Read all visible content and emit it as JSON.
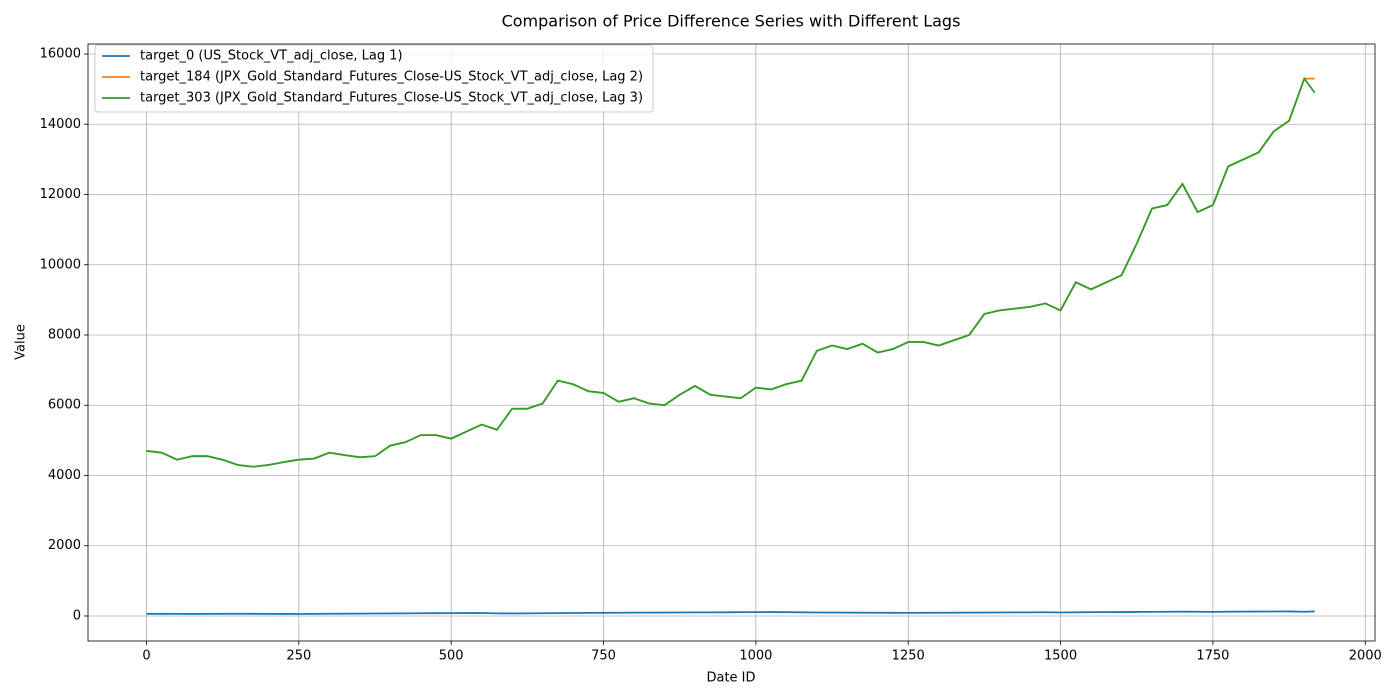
{
  "chart_data": {
    "type": "line",
    "title": "Comparison of Price Difference Series with Different Lags",
    "x_label": "Date ID",
    "y_label": "Value",
    "x": [
      0,
      25,
      50,
      75,
      100,
      125,
      150,
      175,
      200,
      225,
      250,
      275,
      300,
      325,
      350,
      375,
      400,
      425,
      450,
      475,
      500,
      525,
      550,
      575,
      600,
      625,
      650,
      675,
      700,
      725,
      750,
      775,
      800,
      825,
      850,
      875,
      900,
      925,
      950,
      975,
      1000,
      1025,
      1050,
      1075,
      1100,
      1125,
      1150,
      1175,
      1200,
      1225,
      1250,
      1275,
      1300,
      1325,
      1350,
      1375,
      1400,
      1425,
      1450,
      1475,
      1500,
      1525,
      1550,
      1575,
      1600,
      1625,
      1650,
      1675,
      1700,
      1725,
      1750,
      1775,
      1800,
      1825,
      1850,
      1875,
      1900,
      1917
    ],
    "series": [
      {
        "name": "target_0 (US_Stock_VT_adj_close, Lag 1)",
        "color": "#1f77b4",
        "values": [
          60,
          62,
          60,
          58,
          60,
          62,
          63,
          62,
          60,
          58,
          57,
          60,
          63,
          65,
          68,
          70,
          72,
          75,
          78,
          80,
          82,
          84,
          85,
          75,
          72,
          74,
          78,
          82,
          85,
          88,
          90,
          92,
          95,
          96,
          98,
          100,
          102,
          104,
          105,
          108,
          110,
          112,
          108,
          105,
          100,
          98,
          96,
          94,
          92,
          90,
          88,
          90,
          92,
          94,
          96,
          98,
          100,
          102,
          104,
          106,
          100,
          105,
          108,
          110,
          112,
          115,
          118,
          120,
          122,
          120,
          118,
          122,
          125,
          126,
          128,
          130,
          120,
          130
        ]
      },
      {
        "name": "target_184 (JPX_Gold_Standard_Futures_Close-US_Stock_VT_adj_close, Lag 2)",
        "color": "#ff7f0e",
        "values": [
          4700,
          4650,
          4450,
          4550,
          4550,
          4450,
          4300,
          4250,
          4300,
          4380,
          4450,
          4480,
          4650,
          4580,
          4520,
          4550,
          4850,
          4950,
          5150,
          5150,
          5050,
          5250,
          5450,
          5300,
          5900,
          5900,
          6050,
          6700,
          6600,
          6400,
          6350,
          6100,
          6200,
          6050,
          6000,
          6300,
          6550,
          6300,
          6250,
          6200,
          6500,
          6450,
          6600,
          6700,
          7550,
          7700,
          7600,
          7750,
          7500,
          7600,
          7800,
          7800,
          7700,
          7850,
          8000,
          8600,
          8700,
          8750,
          8800,
          8900,
          8700,
          9500,
          9300,
          9500,
          9700,
          10600,
          11600,
          11700,
          12300,
          11500,
          11700,
          12800,
          13000,
          13200,
          13800,
          14100,
          15300,
          15300
        ]
      },
      {
        "name": "target_303 (JPX_Gold_Standard_Futures_Close-US_Stock_VT_adj_close, Lag 3)",
        "color": "#2ca02c",
        "values": [
          4700,
          4650,
          4450,
          4550,
          4550,
          4450,
          4300,
          4250,
          4300,
          4380,
          4450,
          4480,
          4650,
          4580,
          4520,
          4550,
          4850,
          4950,
          5150,
          5150,
          5050,
          5250,
          5450,
          5300,
          5900,
          5900,
          6050,
          6700,
          6600,
          6400,
          6350,
          6100,
          6200,
          6050,
          6000,
          6300,
          6550,
          6300,
          6250,
          6200,
          6500,
          6450,
          6600,
          6700,
          7550,
          7700,
          7600,
          7750,
          7500,
          7600,
          7800,
          7800,
          7700,
          7850,
          8000,
          8600,
          8700,
          8750,
          8800,
          8900,
          8700,
          9500,
          9300,
          9500,
          9700,
          10600,
          11600,
          11700,
          12300,
          11500,
          11700,
          12800,
          13000,
          13200,
          13800,
          14100,
          15300,
          14900
        ]
      }
    ],
    "xlim": [
      -96,
      2016
    ],
    "ylim": [
      -712,
      16285
    ],
    "xticks": [
      0,
      250,
      500,
      750,
      1000,
      1250,
      1500,
      1750,
      2000
    ],
    "yticks": [
      0,
      2000,
      4000,
      6000,
      8000,
      10000,
      12000,
      14000,
      16000
    ],
    "grid": true,
    "legend": "upper left"
  }
}
